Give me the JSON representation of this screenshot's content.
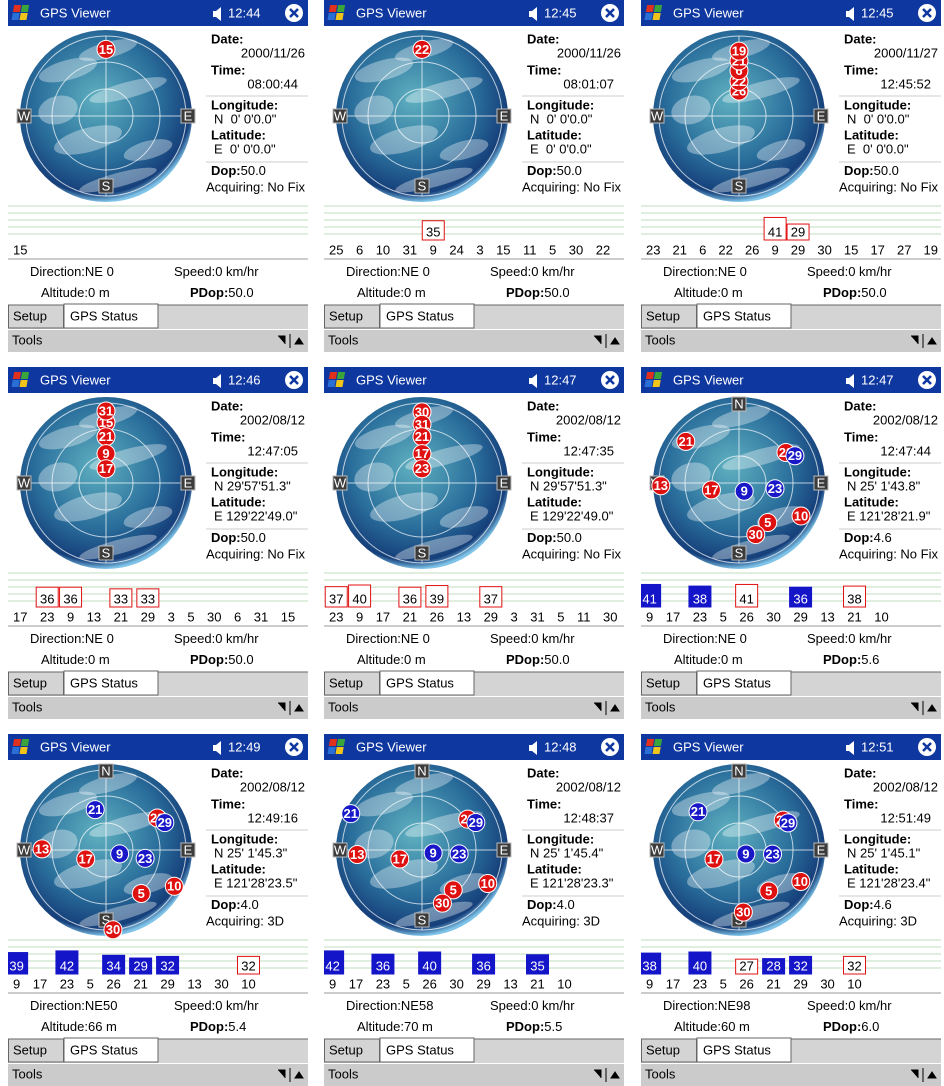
{
  "labels": {
    "app": "GPS Viewer",
    "date": "Date:",
    "time": "Time:",
    "longitude": "Longitude:",
    "latitude": "Latitude:",
    "dop": "Dop:",
    "direction": "Direction:",
    "speed": "Speed:",
    "altitude": "Altitude:",
    "pdop": "PDop:",
    "tabs": [
      "Setup",
      "GPS Status"
    ],
    "menu": "Tools"
  },
  "screens": [
    {
      "clock": "12:44",
      "compass": [
        "E",
        "S",
        "W"
      ],
      "sky": [
        {
          "prn": 15,
          "azimuth": 0,
          "elevation": 15,
          "used": false
        }
      ],
      "date": "2000/11/26",
      "time": "08:00:44",
      "longitude": "N  0' 0'0.0\"",
      "latitude": "E  0' 0'0.0\"",
      "dop": "50.0",
      "status": "Acquiring: No Fix",
      "signals": [
        {
          "prn": 15
        }
      ],
      "direction": "NE 0",
      "speed": "0 km/hr",
      "altitude": "0 m",
      "pdop": "50.0"
    },
    {
      "clock": "12:45",
      "compass": [
        "E",
        "S",
        "W"
      ],
      "sky": [
        {
          "prn": 22,
          "azimuth": 0,
          "elevation": 15,
          "used": false
        }
      ],
      "date": "2000/11/26",
      "time": "08:01:07",
      "longitude": "N  0' 0'0.0\"",
      "latitude": "E  0' 0'0.0\"",
      "dop": "50.0",
      "status": "Acquiring: No Fix",
      "signals": [
        {
          "prn": 25
        },
        {
          "prn": 6
        },
        {
          "prn": 10
        },
        {
          "prn": 31
        },
        {
          "prn": 9,
          "snr": 35,
          "fix": false
        },
        {
          "prn": 24
        },
        {
          "prn": 3
        },
        {
          "prn": 15
        },
        {
          "prn": 11
        },
        {
          "prn": 5
        },
        {
          "prn": 30
        },
        {
          "prn": 22
        }
      ],
      "direction": "NE 0",
      "speed": "0 km/hr",
      "altitude": "0 m",
      "pdop": "50.0"
    },
    {
      "clock": "12:45",
      "compass": [
        "E",
        "S",
        "W"
      ],
      "sky": [
        {
          "prn": 26,
          "azimuth": 0,
          "elevation": 62,
          "used": false
        },
        {
          "prn": 22,
          "azimuth": 0,
          "elevation": 51,
          "used": false
        },
        {
          "prn": 6,
          "azimuth": 0,
          "elevation": 39,
          "used": false
        },
        {
          "prn": 21,
          "azimuth": 0,
          "elevation": 28,
          "used": false
        },
        {
          "prn": 19,
          "azimuth": 0,
          "elevation": 17,
          "used": false
        }
      ],
      "date": "2000/11/27",
      "time": "12:45:52",
      "longitude": "N  0' 0'0.0\"",
      "latitude": "E  0' 0'0.0\"",
      "dop": "50.0",
      "status": "Acquiring: No Fix",
      "signals": [
        {
          "prn": 23
        },
        {
          "prn": 21
        },
        {
          "prn": 6
        },
        {
          "prn": 22
        },
        {
          "prn": 26
        },
        {
          "prn": 9,
          "snr": 41,
          "fix": false
        },
        {
          "prn": 29,
          "snr": 29,
          "fix": false
        },
        {
          "prn": 30
        },
        {
          "prn": 15
        },
        {
          "prn": 17
        },
        {
          "prn": 27
        },
        {
          "prn": 19
        }
      ],
      "direction": "NE 0",
      "speed": "0 km/hr",
      "altitude": "0 m",
      "pdop": "50.0"
    },
    {
      "clock": "12:46",
      "compass": [
        "E",
        "S",
        "W"
      ],
      "sky": [
        {
          "prn": 15,
          "azimuth": 0,
          "elevation": 22,
          "used": false
        },
        {
          "prn": 31,
          "azimuth": 0,
          "elevation": 9,
          "used": false
        },
        {
          "prn": 21,
          "azimuth": 0,
          "elevation": 38,
          "used": false
        },
        {
          "prn": 9,
          "azimuth": 0,
          "elevation": 57,
          "used": false
        },
        {
          "prn": 17,
          "azimuth": 0,
          "elevation": 74,
          "used": false
        }
      ],
      "date": "2002/08/12",
      "time": "12:47:05",
      "longitude": "N 29'57'51.3\"",
      "latitude": "E 129'22'49.0\"",
      "dop": "50.0",
      "status": "Acquiring: No Fix",
      "signals": [
        {
          "prn": 17
        },
        {
          "prn": 23,
          "snr": 36,
          "fix": false
        },
        {
          "prn": 9,
          "snr": 36,
          "fix": false
        },
        {
          "prn": 13
        },
        {
          "prn": 21,
          "snr": 33,
          "fix": false
        },
        {
          "prn": 29,
          "snr": 33,
          "fix": false
        },
        {
          "prn": 3
        },
        {
          "prn": 5
        },
        {
          "prn": 30
        },
        {
          "prn": 6
        },
        {
          "prn": 31
        },
        {
          "prn": 15
        }
      ],
      "direction": "NE 0",
      "speed": "0 km/hr",
      "altitude": "0 m",
      "pdop": "50.0"
    },
    {
      "clock": "12:47",
      "compass": [
        "E",
        "S",
        "W"
      ],
      "sky": [
        {
          "prn": 30,
          "azimuth": 0,
          "elevation": 10,
          "used": false
        },
        {
          "prn": 31,
          "azimuth": 0,
          "elevation": 24,
          "used": false
        },
        {
          "prn": 21,
          "azimuth": 0,
          "elevation": 38,
          "used": false
        },
        {
          "prn": 17,
          "azimuth": 0,
          "elevation": 57,
          "used": false
        },
        {
          "prn": 23,
          "azimuth": 0,
          "elevation": 74,
          "used": false
        }
      ],
      "date": "2002/08/12",
      "time": "12:47:35",
      "longitude": "N 29'57'51.3\"",
      "latitude": "E 129'22'49.0\"",
      "dop": "50.0",
      "status": "Acquiring: No Fix",
      "signals": [
        {
          "prn": 23,
          "snr": 37,
          "fix": false
        },
        {
          "prn": 9,
          "snr": 40,
          "fix": false
        },
        {
          "prn": 17
        },
        {
          "prn": 21,
          "snr": 36,
          "fix": false
        },
        {
          "prn": 26,
          "snr": 39,
          "fix": false
        },
        {
          "prn": 13
        },
        {
          "prn": 29,
          "snr": 37,
          "fix": false
        },
        {
          "prn": 3
        },
        {
          "prn": 31
        },
        {
          "prn": 5
        },
        {
          "prn": 11
        },
        {
          "prn": 30
        }
      ],
      "direction": "NE 0",
      "speed": "0 km/hr",
      "altitude": "0 m",
      "pdop": "50.0"
    },
    {
      "clock": "12:47",
      "compass": [
        "N",
        "E",
        "S",
        "W"
      ],
      "sky": [
        {
          "prn": 21,
          "azimuth": 308,
          "elevation": 14,
          "used": false
        },
        {
          "prn": 22,
          "azimuth": 57,
          "elevation": 27,
          "used": false
        },
        {
          "prn": 29,
          "azimuth": 64,
          "elevation": 20,
          "used": true
        },
        {
          "prn": 13,
          "azimuth": 268,
          "elevation": 2,
          "used": false
        },
        {
          "prn": 17,
          "azimuth": 256,
          "elevation": 58,
          "used": false
        },
        {
          "prn": 9,
          "azimuth": 148,
          "elevation": 79,
          "used": true
        },
        {
          "prn": 23,
          "azimuth": 99,
          "elevation": 49,
          "used": true
        },
        {
          "prn": 10,
          "azimuth": 118,
          "elevation": 11,
          "used": false
        },
        {
          "prn": 5,
          "azimuth": 144,
          "elevation": 35,
          "used": false
        },
        {
          "prn": 30,
          "azimuth": 162,
          "elevation": 29,
          "used": false
        }
      ],
      "date": "2002/08/12",
      "time": "12:47:44",
      "longitude": "N 25' 1'43.8\"",
      "latitude": "E 121'28'21.9\"",
      "dop": "4.6",
      "status": "Acquiring: No Fix",
      "signals": [
        {
          "prn": 9,
          "snr": 41,
          "fix": true
        },
        {
          "prn": 17
        },
        {
          "prn": 23,
          "snr": 38,
          "fix": true
        },
        {
          "prn": 5
        },
        {
          "prn": 26,
          "snr": 41,
          "fix": false
        },
        {
          "prn": 30
        },
        {
          "prn": 29,
          "snr": 36,
          "fix": true
        },
        {
          "prn": 13
        },
        {
          "prn": 21,
          "snr": 38,
          "fix": false
        },
        {
          "prn": 10
        }
      ],
      "direction": "NE 0",
      "speed": "0 km/hr",
      "altitude": "0 m",
      "pdop": "5.6"
    },
    {
      "clock": "12:49",
      "compass": [
        "N",
        "E",
        "S",
        "W"
      ],
      "sky": [
        {
          "prn": 21,
          "azimuth": 345,
          "elevation": 43,
          "used": true
        },
        {
          "prn": 22,
          "azimuth": 58,
          "elevation": 22,
          "used": false
        },
        {
          "prn": 29,
          "azimuth": 65,
          "elevation": 17,
          "used": true
        },
        {
          "prn": 13,
          "azimuth": 271,
          "elevation": 18,
          "used": false
        },
        {
          "prn": 17,
          "azimuth": 246,
          "elevation": 65,
          "used": false
        },
        {
          "prn": 9,
          "azimuth": 106,
          "elevation": 74,
          "used": true
        },
        {
          "prn": 23,
          "azimuth": 102,
          "elevation": 45,
          "used": true
        },
        {
          "prn": 10,
          "azimuth": 118,
          "elevation": 3,
          "used": false
        },
        {
          "prn": 5,
          "azimuth": 141,
          "elevation": 27,
          "used": false
        },
        {
          "prn": 30,
          "azimuth": 175,
          "elevation": 0,
          "used": false
        }
      ],
      "date": "2002/08/12",
      "time": "12:49:16",
      "longitude": "N 25' 1'45.3\"",
      "latitude": "E 121'28'23.5\"",
      "dop": "4.0",
      "status": "Acquiring: 3D",
      "signals": [
        {
          "prn": 9,
          "snr": 39,
          "fix": true
        },
        {
          "prn": 17
        },
        {
          "prn": 23,
          "snr": 42,
          "fix": true
        },
        {
          "prn": 5
        },
        {
          "prn": 26,
          "snr": 34,
          "fix": true
        },
        {
          "prn": 21,
          "snr": 29,
          "fix": true
        },
        {
          "prn": 29,
          "snr": 32,
          "fix": true
        },
        {
          "prn": 13
        },
        {
          "prn": 30
        },
        {
          "prn": 10,
          "snr": 32,
          "fix": false
        }
      ],
      "direction": "NE50",
      "speed": "0 km/hr",
      "altitude": "66 m",
      "pdop": "5.4"
    },
    {
      "clock": "12:48",
      "compass": [
        "N",
        "E",
        "S",
        "W"
      ],
      "sky": [
        {
          "prn": 21,
          "azimuth": 297,
          "elevation": 0,
          "used": true
        },
        {
          "prn": 22,
          "azimuth": 56,
          "elevation": 28,
          "used": false
        },
        {
          "prn": 29,
          "azimuth": 63,
          "elevation": 22,
          "used": true
        },
        {
          "prn": 13,
          "azimuth": 266,
          "elevation": 17,
          "used": false
        },
        {
          "prn": 17,
          "azimuth": 248,
          "elevation": 63,
          "used": false
        },
        {
          "prn": 9,
          "azimuth": 105,
          "elevation": 77,
          "used": true
        },
        {
          "prn": 23,
          "azimuth": 96,
          "elevation": 48,
          "used": true
        },
        {
          "prn": 10,
          "azimuth": 117,
          "elevation": 7,
          "used": false
        },
        {
          "prn": 5,
          "azimuth": 142,
          "elevation": 33,
          "used": false
        },
        {
          "prn": 30,
          "azimuth": 159,
          "elevation": 26,
          "used": false
        }
      ],
      "date": "2002/08/12",
      "time": "12:48:37",
      "longitude": "N 25' 1'45.4\"",
      "latitude": "E 121'28'23.3\"",
      "dop": "4.0",
      "status": "Acquiring: 3D",
      "signals": [
        {
          "prn": 9,
          "snr": 42,
          "fix": true
        },
        {
          "prn": 17
        },
        {
          "prn": 23,
          "snr": 36,
          "fix": true
        },
        {
          "prn": 5
        },
        {
          "prn": 26,
          "snr": 40,
          "fix": true
        },
        {
          "prn": 30
        },
        {
          "prn": 29,
          "snr": 36,
          "fix": true
        },
        {
          "prn": 13
        },
        {
          "prn": 21,
          "snr": 35,
          "fix": true
        },
        {
          "prn": 10
        }
      ],
      "direction": "NE58",
      "speed": "0 km/hr",
      "altitude": "70 m",
      "pdop": "5.5"
    },
    {
      "clock": "12:51",
      "compass": [
        "N",
        "E",
        "S",
        "W"
      ],
      "sky": [
        {
          "prn": 21,
          "azimuth": 313,
          "elevation": 27,
          "used": true
        },
        {
          "prn": 22,
          "azimuth": 56,
          "elevation": 30,
          "used": false
        },
        {
          "prn": 29,
          "azimuth": 61,
          "elevation": 27,
          "used": true
        },
        {
          "prn": 17,
          "azimuth": 250,
          "elevation": 60,
          "used": false
        },
        {
          "prn": 9,
          "azimuth": 120,
          "elevation": 81,
          "used": true
        },
        {
          "prn": 23,
          "azimuth": 97,
          "elevation": 52,
          "used": true
        },
        {
          "prn": 10,
          "azimuth": 117,
          "elevation": 12,
          "used": false
        },
        {
          "prn": 5,
          "azimuth": 144,
          "elevation": 33,
          "used": false
        },
        {
          "prn": 30,
          "azimuth": 176,
          "elevation": 20,
          "used": false
        }
      ],
      "date": "2002/08/12",
      "time": "12:51:49",
      "longitude": "N 25' 1'45.1\"",
      "latitude": "E 121'28'23.4\"",
      "dop": "4.6",
      "status": "Acquiring: 3D",
      "signals": [
        {
          "prn": 9,
          "snr": 38,
          "fix": true
        },
        {
          "prn": 17
        },
        {
          "prn": 23,
          "snr": 40,
          "fix": true
        },
        {
          "prn": 5
        },
        {
          "prn": 26,
          "snr": 27,
          "fix": false
        },
        {
          "prn": 21,
          "snr": 28,
          "fix": true
        },
        {
          "prn": 29,
          "snr": 32,
          "fix": true
        },
        {
          "prn": 30
        },
        {
          "prn": 10,
          "snr": 32,
          "fix": false
        }
      ],
      "direction": "NE98",
      "speed": "0 km/hr",
      "altitude": "60 m",
      "pdop": "6.0"
    }
  ]
}
